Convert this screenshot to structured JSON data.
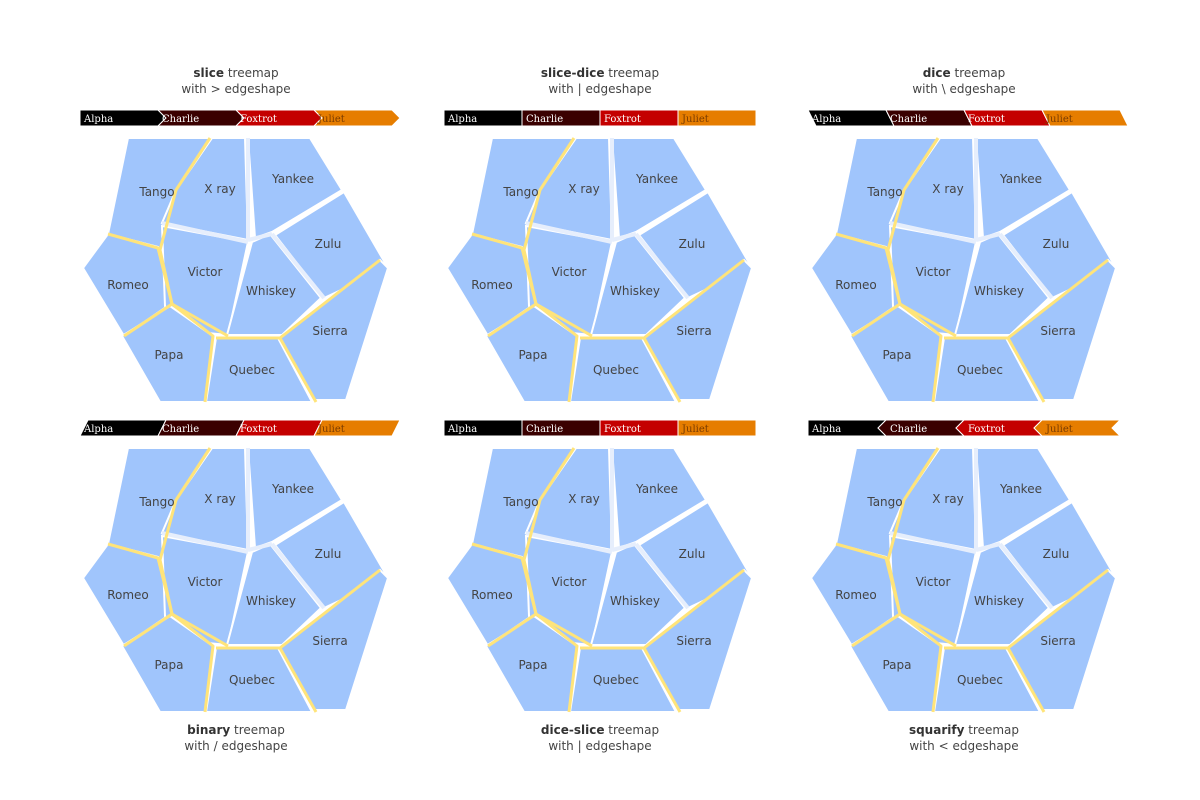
{
  "chart_data": [
    {
      "type": "treemap",
      "tiling": "slice",
      "title_bold": "slice",
      "title_rest": " treemap",
      "subtitle": "with > edgeshape",
      "pathbar_edge": ">",
      "pathbar": [
        "Alpha",
        "Charlie",
        "Foxtrot",
        "Juliet"
      ],
      "labels": [
        "Tango",
        "X ray",
        "Yankee",
        "Zulu",
        "Romeo",
        "Victor",
        "Whiskey",
        "Sierra",
        "Papa",
        "Quebec"
      ]
    },
    {
      "type": "treemap",
      "tiling": "slice-dice",
      "title_bold": "slice-dice",
      "title_rest": " treemap",
      "subtitle": "with | edgeshape",
      "pathbar_edge": "|",
      "pathbar": [
        "Alpha",
        "Charlie",
        "Foxtrot",
        "Juliet"
      ],
      "labels": [
        "Tango",
        "X ray",
        "Yankee",
        "Zulu",
        "Romeo",
        "Victor",
        "Whiskey",
        "Sierra",
        "Papa",
        "Quebec"
      ]
    },
    {
      "type": "treemap",
      "tiling": "dice",
      "title_bold": "dice",
      "title_rest": " treemap",
      "subtitle": "with \\ edgeshape",
      "pathbar_edge": "\\",
      "pathbar": [
        "Alpha",
        "Charlie",
        "Foxtrot",
        "Juliet"
      ],
      "labels": [
        "Tango",
        "X ray",
        "Yankee",
        "Zulu",
        "Romeo",
        "Victor",
        "Whiskey",
        "Sierra",
        "Papa",
        "Quebec"
      ]
    },
    {
      "type": "treemap",
      "tiling": "binary",
      "title_bold": "binary",
      "title_rest": " treemap",
      "subtitle": "with / edgeshape",
      "pathbar_edge": "/",
      "pathbar": [
        "Alpha",
        "Charlie",
        "Foxtrot",
        "Juliet"
      ],
      "labels": [
        "Tango",
        "X ray",
        "Yankee",
        "Zulu",
        "Romeo",
        "Victor",
        "Whiskey",
        "Sierra",
        "Papa",
        "Quebec"
      ]
    },
    {
      "type": "treemap",
      "tiling": "dice-slice",
      "title_bold": "dice-slice",
      "title_rest": " treemap",
      "subtitle": "with | edgeshape",
      "pathbar_edge": "|",
      "pathbar": [
        "Alpha",
        "Charlie",
        "Foxtrot",
        "Juliet"
      ],
      "labels": [
        "Tango",
        "X ray",
        "Yankee",
        "Zulu",
        "Romeo",
        "Victor",
        "Whiskey",
        "Sierra",
        "Papa",
        "Quebec"
      ]
    },
    {
      "type": "treemap",
      "tiling": "squarify",
      "title_bold": "squarify",
      "title_rest": " treemap",
      "subtitle": "with < edgeshape",
      "pathbar_edge": "<",
      "pathbar": [
        "Alpha",
        "Charlie",
        "Foxtrot",
        "Juliet"
      ],
      "labels": [
        "Tango",
        "X ray",
        "Yankee",
        "Zulu",
        "Romeo",
        "Victor",
        "Whiskey",
        "Sierra",
        "Papa",
        "Quebec"
      ]
    }
  ],
  "colors": {
    "cell_fill": "#a0c5fc",
    "selected_border": "#ffe47a",
    "pathbar": [
      "#000000",
      "#3a0000",
      "#c40000",
      "#e67d00"
    ],
    "pathbar_text": [
      "#ffffff",
      "#ffffff",
      "#ffffff",
      "#7a3c00"
    ]
  }
}
